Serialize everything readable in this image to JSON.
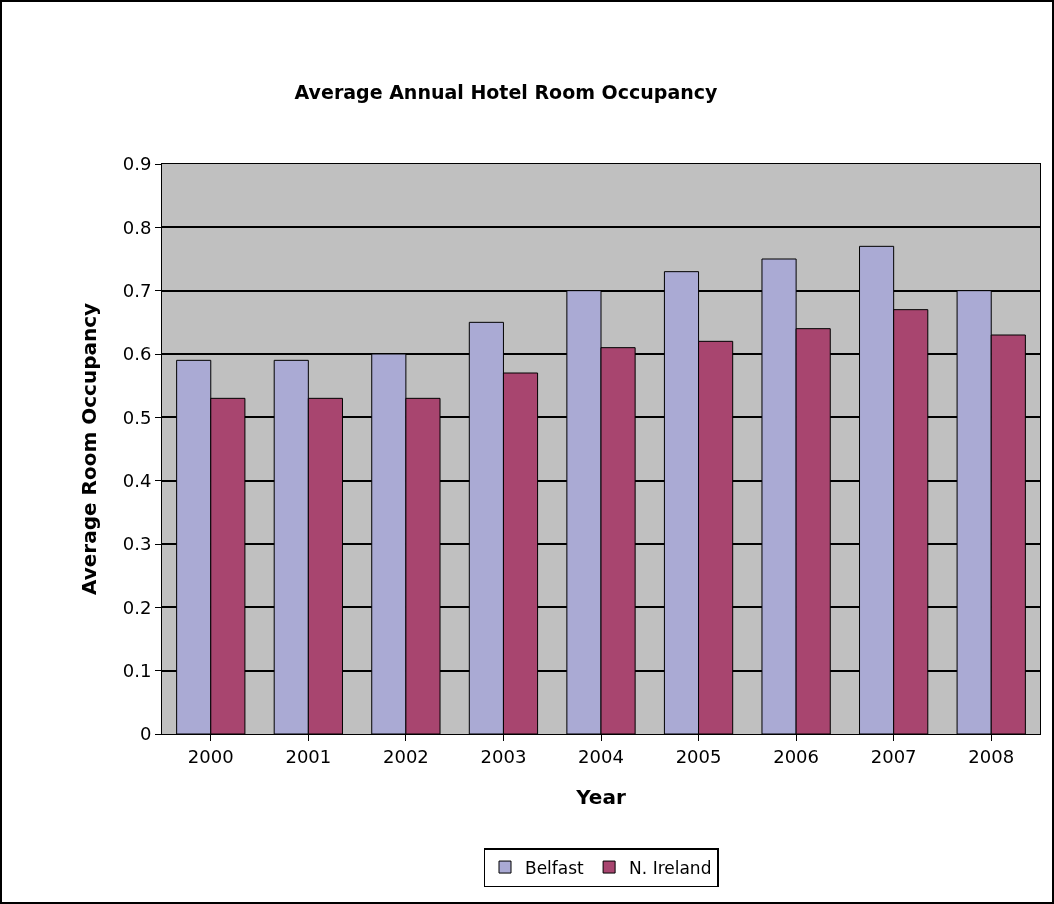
{
  "chart_data": {
    "type": "bar",
    "title": "Average Annual Hotel Room Occupancy",
    "xlabel": "Year",
    "ylabel": "Average Room Occupancy",
    "categories": [
      "2000",
      "2001",
      "2002",
      "2003",
      "2004",
      "2005",
      "2006",
      "2007",
      "2008"
    ],
    "series": [
      {
        "name": "Belfast",
        "color": "#aaaad4",
        "values": [
          0.59,
          0.59,
          0.6,
          0.65,
          0.7,
          0.73,
          0.75,
          0.77,
          0.7
        ]
      },
      {
        "name": "N. Ireland",
        "color": "#a8456f",
        "values": [
          0.53,
          0.53,
          0.53,
          0.57,
          0.61,
          0.62,
          0.64,
          0.67,
          0.63
        ]
      }
    ],
    "ylim": [
      0,
      0.9
    ],
    "yticks": [
      0,
      0.1,
      0.2,
      0.3,
      0.4,
      0.5,
      0.6,
      0.7,
      0.8,
      0.9
    ],
    "grid": "y",
    "legend": "bottom"
  }
}
